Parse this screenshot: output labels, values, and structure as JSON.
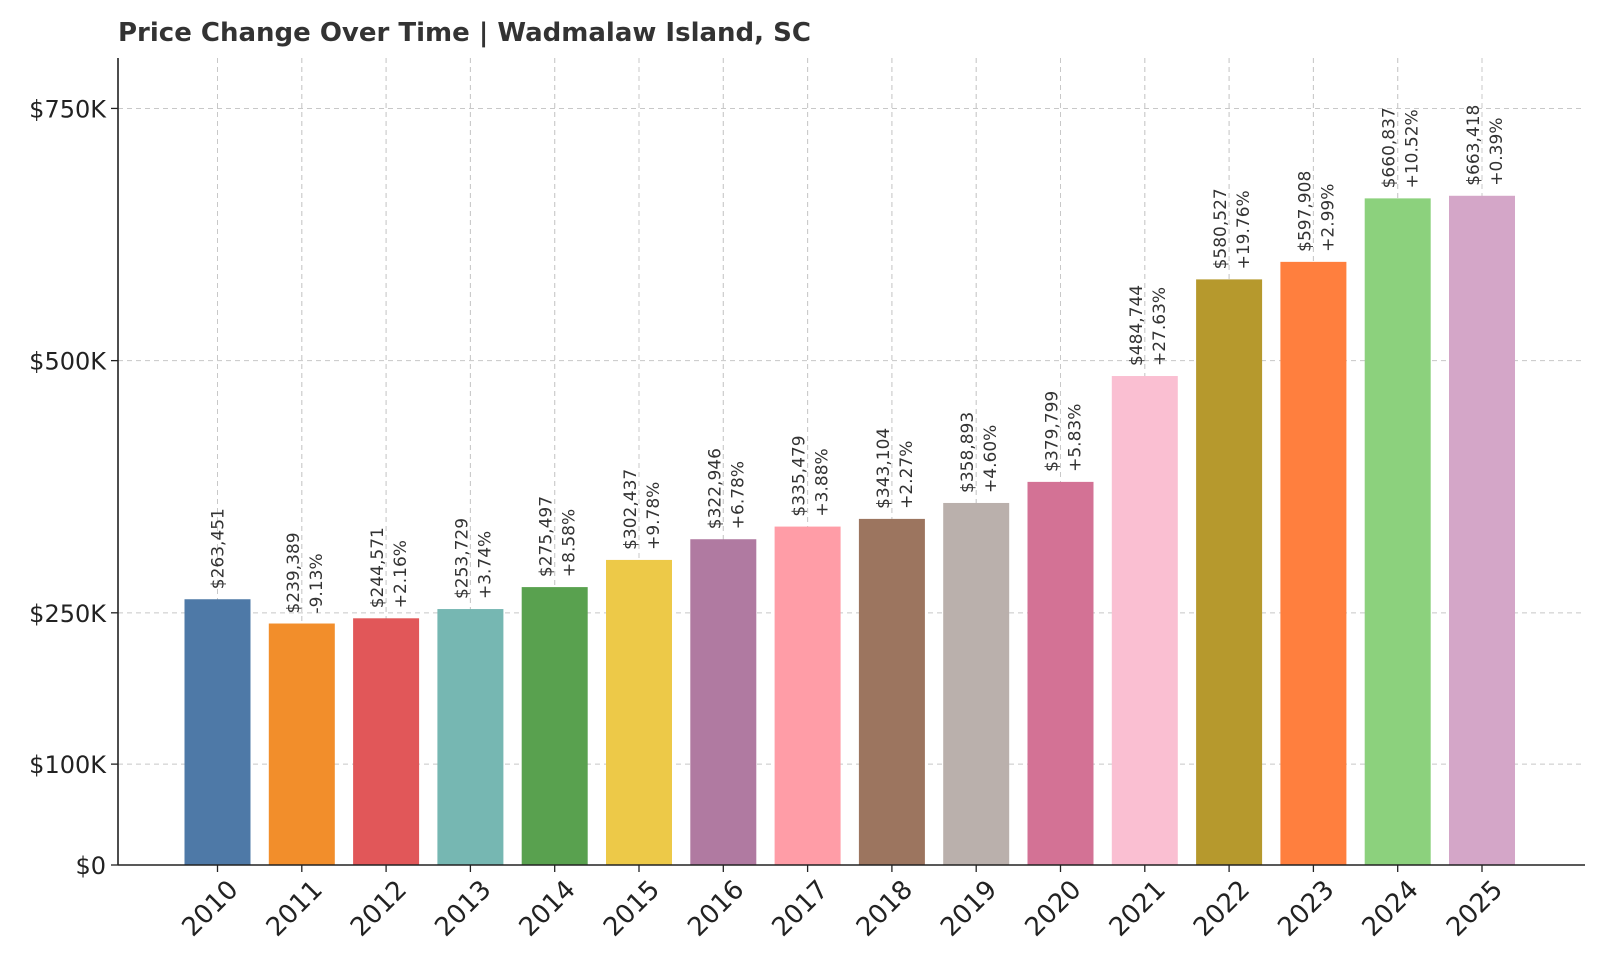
{
  "chart_data": {
    "type": "bar",
    "title": "Price Change Over Time | Wadmalaw Island, SC",
    "xlabel": "",
    "ylabel": "",
    "categories": [
      "2010",
      "2011",
      "2012",
      "2013",
      "2014",
      "2015",
      "2016",
      "2017",
      "2018",
      "2019",
      "2020",
      "2021",
      "2022",
      "2023",
      "2024",
      "2025"
    ],
    "values": [
      263451,
      239389,
      244571,
      253729,
      275497,
      302437,
      322946,
      335479,
      343104,
      358893,
      379799,
      484744,
      580527,
      597908,
      660837,
      663418
    ],
    "value_labels": [
      "$263,451",
      "$239,389",
      "$244,571",
      "$253,729",
      "$275,497",
      "$302,437",
      "$322,946",
      "$335,479",
      "$343,104",
      "$358,893",
      "$379,799",
      "$484,744",
      "$580,527",
      "$597,908",
      "$660,837",
      "$663,418"
    ],
    "change_labels": [
      "",
      "-9.13%",
      "+2.16%",
      "+3.74%",
      "+8.58%",
      "+9.78%",
      "+6.78%",
      "+3.88%",
      "+2.27%",
      "+4.60%",
      "+5.83%",
      "+27.63%",
      "+19.76%",
      "+2.99%",
      "+10.52%",
      "+0.39%"
    ],
    "colors": [
      "#4e79a7",
      "#f28e2b",
      "#e15759",
      "#76b7b2",
      "#59a14f",
      "#edc948",
      "#b07aa1",
      "#ff9da7",
      "#9c755f",
      "#bab0ac",
      "#d37295",
      "#fabfd2",
      "#b6992d",
      "#ff7f3e",
      "#8cd17d",
      "#d4a6c8"
    ],
    "yticks": [
      0,
      100000,
      250000,
      500000,
      750000
    ],
    "ytick_labels": [
      "$0",
      "$100K",
      "$250K",
      "$500K",
      "$750K"
    ],
    "ylim": [
      0,
      800000
    ],
    "grid": true
  }
}
